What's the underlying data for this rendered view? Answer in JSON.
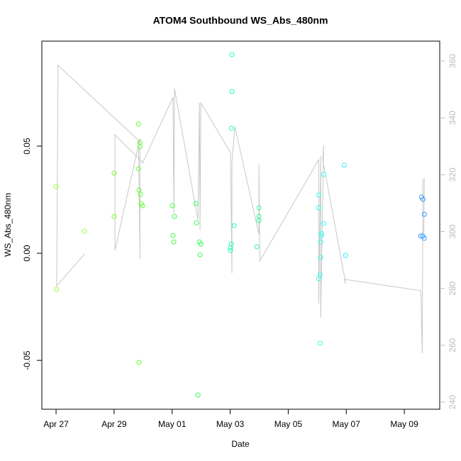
{
  "chart_data": {
    "type": "scatter",
    "title": "ATOM4 Southbound WS_Abs_480nm",
    "x_label": "Date",
    "y_label": "WS_Abs_480nm",
    "xlim": [
      -0.49,
      13.22
    ],
    "xticks": [
      {
        "value": 0,
        "label": "Apr 27"
      },
      {
        "value": 2,
        "label": "Apr 29"
      },
      {
        "value": 4,
        "label": "May 01"
      },
      {
        "value": 6,
        "label": "May 03"
      },
      {
        "value": 8,
        "label": "May 05"
      },
      {
        "value": 10,
        "label": "May 07"
      },
      {
        "value": 12,
        "label": "May 09"
      }
    ],
    "ylim": [
      -0.0728,
      0.099
    ],
    "yticks": [
      -0.05,
      {
        "value": 0,
        "label": "0.00"
      },
      0.05
    ],
    "y2lim": [
      237.5,
      367
    ],
    "y2ticks": [
      240,
      260,
      280,
      300,
      320,
      340,
      360
    ],
    "series": [
      {
        "type": "scatter",
        "x": [
          0,
          0.02,
          0.98,
          2.0,
          2.0,
          2.84,
          2.89,
          2.89,
          2.84,
          2.86,
          2.91,
          2.93,
          2.98,
          2.86,
          4.01,
          4.08,
          4.03,
          4.06,
          4.82,
          4.84,
          4.94,
          4.99,
          4.96,
          4.89,
          6.06,
          6.06,
          6.04,
          6.04,
          6.01,
          6.01,
          6.14,
          6.99,
          6.99,
          6.99,
          6.92,
          9.05,
          9.05,
          9.15,
          9.15,
          9.12,
          9.12,
          9.1,
          9.05,
          9.1,
          9.22,
          9.22,
          9.93,
          9.98,
          12.59,
          12.64,
          12.69,
          12.57,
          12.64,
          12.69
        ],
        "values": [
          0.0311,
          -0.0169,
          0.0103,
          0.0374,
          0.0172,
          0.0603,
          0.0517,
          0.0497,
          0.0394,
          0.0295,
          0.0275,
          0.0232,
          0.0222,
          -0.051,
          0.0222,
          0.0172,
          0.0083,
          0.0053,
          0.0232,
          0.0142,
          0.0053,
          0.0043,
          -0.0007,
          -0.0662,
          0.0927,
          0.0755,
          0.0583,
          0.0043,
          0.0026,
          0.0013,
          0.0129,
          0.0212,
          0.0172,
          0.0152,
          0.003,
          0.0272,
          0.0212,
          0.0093,
          0.0083,
          0.0053,
          -0.002,
          -0.0099,
          -0.0119,
          -0.042,
          0.0368,
          0.0139,
          0.0411,
          -0.001,
          0.0262,
          0.0252,
          0.0182,
          0.008,
          0.008,
          0.007
        ],
        "colors": [
          "#99ff33",
          "#99ff33",
          "#99ff33",
          "#77ff33",
          "#77ff33",
          "#66ff33",
          "#66ff33",
          "#66ff33",
          "#66ff33",
          "#66ff33",
          "#66ff33",
          "#66ff33",
          "#66ff33",
          "#66ff33",
          "#44ff44",
          "#44ff44",
          "#44ff44",
          "#44ff44",
          "#33ff55",
          "#33ff55",
          "#33ff55",
          "#33ff55",
          "#33ff55",
          "#33ff55",
          "#22ffaa",
          "#22ffaa",
          "#22ffaa",
          "#22ffaa",
          "#22ffaa",
          "#22ffaa",
          "#22ffaa",
          "#33ff99",
          "#33ff99",
          "#33ff99",
          "#33ff99",
          "#33ffee",
          "#33ffee",
          "#33ffee",
          "#33ffee",
          "#33ffee",
          "#33ffee",
          "#33ffee",
          "#33ffee",
          "#33ffee",
          "#33ffee",
          "#33ffee",
          "#33eeff",
          "#33eeff",
          "#3399ff",
          "#3399ff",
          "#3399ff",
          "#3399ff",
          "#3399ff",
          "#3399ff"
        ]
      },
      {
        "type": "line",
        "axis": "y2",
        "color": "#c8c8c8",
        "x": [
          0.98,
          0.02,
          0.07,
          2.84,
          2.89,
          2.89,
          2.03,
          2.03,
          2.96,
          2.98,
          4.03,
          4.06,
          4.08,
          4.89,
          4.94,
          4.96,
          4.99,
          6.01,
          6.06,
          6.06,
          6.16,
          6.99,
          6.99,
          7.02,
          9.05,
          9.05,
          9.12,
          9.12,
          9.22,
          9.19,
          9.98,
          9.93,
          12.57,
          12.62,
          12.64,
          12.69,
          12.67
        ],
        "values": [
          292.1,
          280.9,
          358.5,
          332.1,
          290.4,
          332.8,
          293.4,
          334.1,
          324.6,
          324.1,
          347.3,
          306.6,
          350.3,
          304.1,
          345.3,
          300.4,
          345.3,
          327.8,
          285.4,
          324.1,
          337.0,
          299.1,
          323.6,
          289.6,
          325.3,
          274.7,
          326.6,
          269.7,
          330.3,
          325.3,
          281.7,
          283.2,
          279.2,
          257.2,
          318.3,
          318.6,
          299.1
        ]
      }
    ]
  }
}
